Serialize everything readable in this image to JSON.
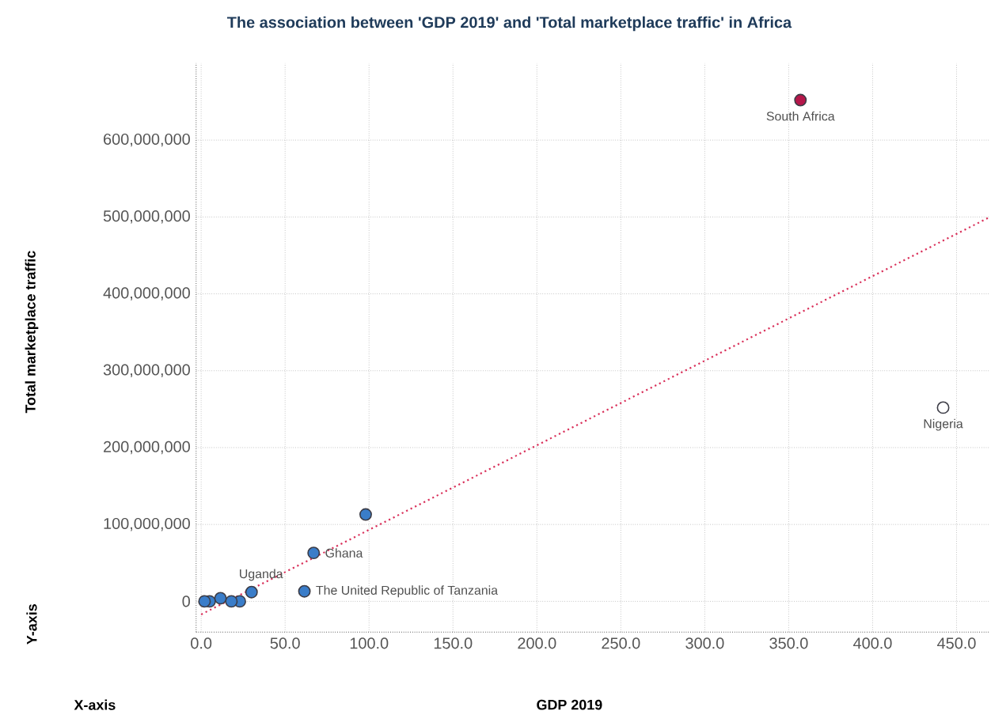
{
  "chart_data": {
    "type": "scatter",
    "title": "The association between 'GDP 2019' and 'Total marketplace traffic' in Africa",
    "xlabel": "GDP 2019",
    "ylabel": "Total marketplace traffic",
    "annotations": [
      "Y-axis",
      "X-axis",
      {
        "text": "South Africa",
        "x": 357,
        "y": 652000000
      },
      {
        "text": "Nigeria",
        "x": 442,
        "y": 252000000
      },
      {
        "text": "Ghana",
        "x": 67,
        "y": 63000000
      },
      {
        "text": "Uganda",
        "x": 30,
        "y": 12000000
      },
      {
        "text": "The United Republic of Tanzania",
        "x": 61.5,
        "y": 13000000
      }
    ],
    "xlim": [
      -3,
      470
    ],
    "ylim": [
      -40000000,
      700000000
    ],
    "xticks": [
      {
        "value": 0,
        "label": "0.0"
      },
      {
        "value": 50,
        "label": "50.0"
      },
      {
        "value": 100,
        "label": "100.0"
      },
      {
        "value": 150,
        "label": "150.0"
      },
      {
        "value": 200,
        "label": "200.0"
      },
      {
        "value": 250,
        "label": "250.0"
      },
      {
        "value": 300,
        "label": "300.0"
      },
      {
        "value": 350,
        "label": "350.0"
      },
      {
        "value": 400,
        "label": "400.0"
      },
      {
        "value": 450,
        "label": "450.0"
      }
    ],
    "yticks": [
      0,
      {
        "value": 100000000,
        "label": "100,000,000"
      },
      {
        "value": 200000000,
        "label": "200,000,000"
      },
      {
        "value": 300000000,
        "label": "300,000,000"
      },
      {
        "value": 400000000,
        "label": "400,000,000"
      },
      {
        "value": 500000000,
        "label": "500,000,000"
      },
      {
        "value": 600000000,
        "label": "600,000,000"
      }
    ],
    "grid": true,
    "series": [
      {
        "marker": "circle",
        "x": [
          357,
          442,
          98,
          67,
          61.5,
          30,
          23,
          18,
          11.5,
          5,
          2
        ],
        "values": [
          652000000,
          252000000,
          113000000,
          63000000,
          13000000,
          12000000,
          0,
          0,
          4000000,
          0,
          0
        ],
        "colors": [
          "#b5174a",
          "#ffffff",
          "#3a7dc9",
          "#3a7dc9",
          "#3a7dc9",
          "#3a7dc9",
          "#3a7dc9",
          "#3a7dc9",
          "#3a7dc9",
          "#3a7dc9",
          "#3a7dc9"
        ]
      },
      {
        "type": "line",
        "marker": "none",
        "x": [
          0,
          470
        ],
        "values": [
          -17000000,
          500000000
        ],
        "color": "#d9305a",
        "line_style": "dotted"
      }
    ]
  }
}
